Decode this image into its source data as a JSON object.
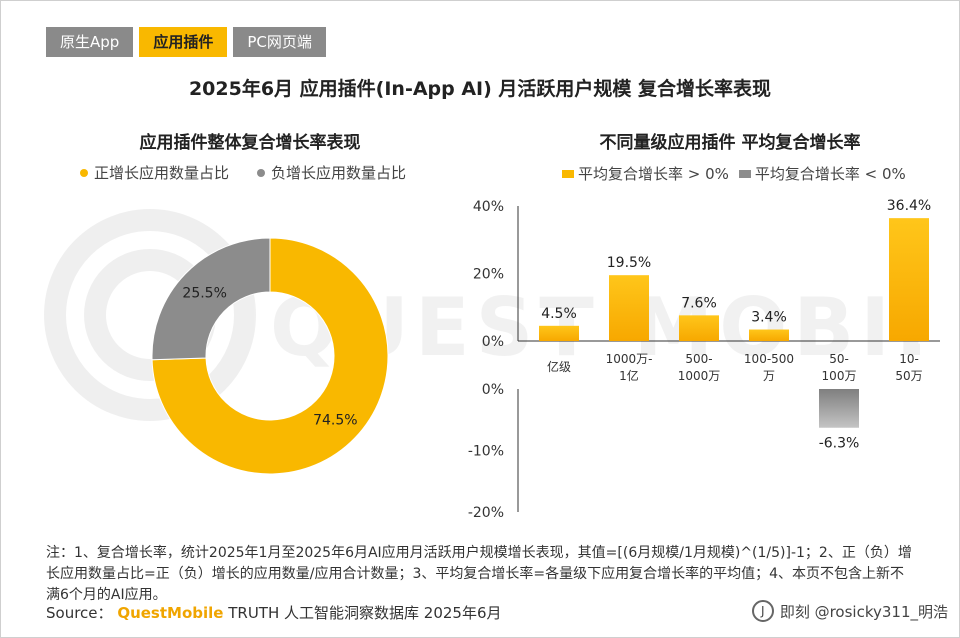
{
  "tabs": [
    {
      "label": "原生App",
      "active": false
    },
    {
      "label": "应用插件",
      "active": true
    },
    {
      "label": "PC网页端",
      "active": false
    }
  ],
  "main_title": "2025年6月 应用插件(In-App AI) 月活跃用户规模 复合增长率表现",
  "watermark": "QUEST MOBILE",
  "colors": {
    "accent": "#f9b800",
    "negative": "#8c8c8c",
    "tab_inactive": "#8a8a8a"
  },
  "chart_data": [
    {
      "type": "pie",
      "title": "应用插件整体复合增长率表现",
      "legend": [
        "正增长应用数量占比",
        "负增长应用数量占比"
      ],
      "slices": [
        {
          "label": "正增长应用数量占比",
          "value": 74.5,
          "display": "74.5%",
          "color": "#f9b800"
        },
        {
          "label": "负增长应用数量占比",
          "value": 25.5,
          "display": "25.5%",
          "color": "#8c8c8c"
        }
      ],
      "donut": true
    },
    {
      "type": "bar",
      "title": "不同量级应用插件 平均复合增长率",
      "legend": [
        "平均复合增长率 > 0%",
        "平均复合增长率 < 0%"
      ],
      "categories": [
        [
          "亿级"
        ],
        [
          "1000万-",
          "1亿"
        ],
        [
          "500-",
          "1000万"
        ],
        [
          "100-500",
          "万"
        ],
        [
          "50-",
          "100万"
        ],
        [
          "10-",
          "50万"
        ]
      ],
      "values": [
        4.5,
        19.5,
        7.6,
        3.4,
        -6.3,
        36.4
      ],
      "value_labels": [
        "4.5%",
        "19.5%",
        "7.6%",
        "3.4%",
        "-6.3%",
        "36.4%"
      ],
      "positive_ticks": [
        "40%",
        "20%",
        "0%"
      ],
      "negative_ticks": [
        "0%",
        "-10%",
        "-20%"
      ],
      "ylim_positive": [
        0,
        40
      ],
      "ylim_negative": [
        -20,
        0
      ]
    }
  ],
  "note": "注：1、复合增长率，统计2025年1月至2025年6月AI应用月活跃用户规模增长表现，其值=[(6月规模/1月规模)^(1/5)]-1；2、正（负）增长应用数量占比=正（负）增长的应用数量/应用合计数量；3、平均复合增长率=各量级下应用复合增长率的平均值；4、本页不包含上新不满6个月的AI应用。",
  "source": {
    "prefix": "Source：",
    "brand": "QuestMobile",
    "suffix": "TRUTH 人工智能洞察数据库 2025年6月"
  },
  "credit": "即刻 @rosicky311_明浩"
}
